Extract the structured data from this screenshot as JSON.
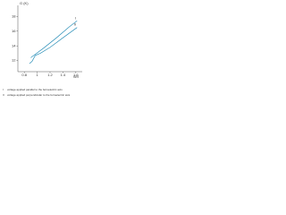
{
  "chart_data": {
    "type": "line",
    "y_label": "G (K)",
    "x_label": "W/l",
    "xlim": [
      0.7,
      1.7
    ],
    "xticks": [
      0.8,
      1.0,
      1.2,
      1.4,
      1.6
    ],
    "ylim": [
      10.5,
      19.5
    ],
    "yticks": [
      12,
      14,
      16,
      18
    ],
    "series": [
      {
        "name": "I",
        "color": "#2a8fb8",
        "x": [
          0.9,
          1.1,
          1.3,
          1.5,
          1.62
        ],
        "values": [
          12.4,
          13.7,
          15.1,
          16.6,
          17.4
        ]
      },
      {
        "name": "II",
        "color": "#2a8fb8",
        "x": [
          0.88,
          0.92,
          0.97,
          1.05,
          1.2,
          1.4,
          1.62
        ],
        "values": [
          11.6,
          11.9,
          12.7,
          13.0,
          13.8,
          15.1,
          16.5
        ]
      }
    ],
    "notes": [
      "voltage applied parallel to the ferroelectric axis",
      "voltage applied perpendicular to the ferroelectric axis"
    ]
  }
}
